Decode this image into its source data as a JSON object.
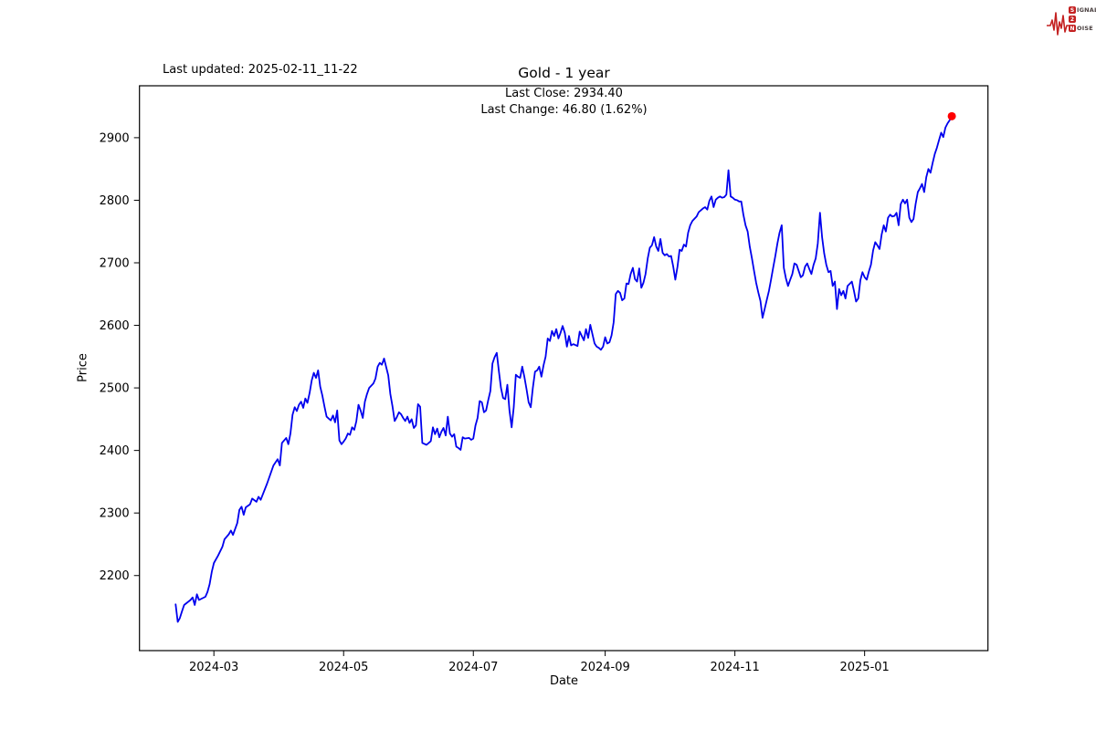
{
  "header": {
    "last_updated": "Last updated: 2025-02-11_11-22",
    "title": "Gold - 1 year",
    "last_close": "Last Close: 2934.40",
    "last_change": "Last Change: 46.80 (1.62%)"
  },
  "logo": {
    "rows": [
      {
        "initial": "S",
        "rest": "IGNAL"
      },
      {
        "initial": "2",
        "rest": ""
      },
      {
        "initial": "N",
        "rest": "OISE"
      }
    ],
    "color": "#c42222"
  },
  "chart_data": {
    "type": "line",
    "title": "Gold - 1 year",
    "xlabel": "Date",
    "ylabel": "Price",
    "line_color": "#0000ee",
    "marker_color": "#ff0000",
    "grid": false,
    "x_axis": {
      "label": "Date",
      "range": [
        "2024-01-26",
        "2025-02-28"
      ],
      "ticks": [
        {
          "label": "2024-03",
          "date": "2024-03-01"
        },
        {
          "label": "2024-05",
          "date": "2024-05-01"
        },
        {
          "label": "2024-07",
          "date": "2024-07-01"
        },
        {
          "label": "2024-09",
          "date": "2024-09-01"
        },
        {
          "label": "2024-11",
          "date": "2024-11-01"
        },
        {
          "label": "2025-01",
          "date": "2025-01-01"
        }
      ]
    },
    "y_axis": {
      "label": "Price",
      "range": [
        2080,
        2983
      ],
      "ticks": [
        2200,
        2300,
        2400,
        2500,
        2600,
        2700,
        2800,
        2900
      ]
    },
    "last_point": {
      "date": "2025-02-11",
      "value": 2934.4
    },
    "points": [
      [
        "2024-02-12",
        2154
      ],
      [
        "2024-02-13",
        2126
      ],
      [
        "2024-02-14",
        2132
      ],
      [
        "2024-02-15",
        2143
      ],
      [
        "2024-02-16",
        2153
      ],
      [
        "2024-02-19",
        2161
      ],
      [
        "2024-02-20",
        2165
      ],
      [
        "2024-02-21",
        2153
      ],
      [
        "2024-02-22",
        2170
      ],
      [
        "2024-02-23",
        2161
      ],
      [
        "2024-02-26",
        2166
      ],
      [
        "2024-02-27",
        2174
      ],
      [
        "2024-02-28",
        2186
      ],
      [
        "2024-02-29",
        2206
      ],
      [
        "2024-03-01",
        2220
      ],
      [
        "2024-03-03",
        2232
      ],
      [
        "2024-03-05",
        2246
      ],
      [
        "2024-03-06",
        2258
      ],
      [
        "2024-03-08",
        2266
      ],
      [
        "2024-03-09",
        2272
      ],
      [
        "2024-03-10",
        2265
      ],
      [
        "2024-03-12",
        2284
      ],
      [
        "2024-03-13",
        2305
      ],
      [
        "2024-03-14",
        2310
      ],
      [
        "2024-03-15",
        2297
      ],
      [
        "2024-03-16",
        2309
      ],
      [
        "2024-03-18",
        2314
      ],
      [
        "2024-03-19",
        2323
      ],
      [
        "2024-03-21",
        2318
      ],
      [
        "2024-03-22",
        2326
      ],
      [
        "2024-03-23",
        2321
      ],
      [
        "2024-03-26",
        2347
      ],
      [
        "2024-03-29",
        2376
      ],
      [
        "2024-03-31",
        2386
      ],
      [
        "2024-04-01",
        2376
      ],
      [
        "2024-04-02",
        2412
      ],
      [
        "2024-04-04",
        2420
      ],
      [
        "2024-04-05",
        2410
      ],
      [
        "2024-04-06",
        2427
      ],
      [
        "2024-04-07",
        2457
      ],
      [
        "2024-04-08",
        2469
      ],
      [
        "2024-04-09",
        2463
      ],
      [
        "2024-04-10",
        2473
      ],
      [
        "2024-04-11",
        2478
      ],
      [
        "2024-04-12",
        2468
      ],
      [
        "2024-04-13",
        2483
      ],
      [
        "2024-04-14",
        2476
      ],
      [
        "2024-04-15",
        2492
      ],
      [
        "2024-04-16",
        2512
      ],
      [
        "2024-04-17",
        2524
      ],
      [
        "2024-04-18",
        2516
      ],
      [
        "2024-04-19",
        2528
      ],
      [
        "2024-04-20",
        2502
      ],
      [
        "2024-04-21",
        2488
      ],
      [
        "2024-04-22",
        2470
      ],
      [
        "2024-04-23",
        2454
      ],
      [
        "2024-04-24",
        2451
      ],
      [
        "2024-04-25",
        2448
      ],
      [
        "2024-04-26",
        2456
      ],
      [
        "2024-04-27",
        2445
      ],
      [
        "2024-04-28",
        2464
      ],
      [
        "2024-04-29",
        2416
      ],
      [
        "2024-04-30",
        2410
      ],
      [
        "2024-05-01",
        2414
      ],
      [
        "2024-05-02",
        2419
      ],
      [
        "2024-05-03",
        2427
      ],
      [
        "2024-05-04",
        2425
      ],
      [
        "2024-05-05",
        2437
      ],
      [
        "2024-05-06",
        2433
      ],
      [
        "2024-05-07",
        2447
      ],
      [
        "2024-05-08",
        2473
      ],
      [
        "2024-05-09",
        2464
      ],
      [
        "2024-05-10",
        2452
      ],
      [
        "2024-05-11",
        2478
      ],
      [
        "2024-05-12",
        2490
      ],
      [
        "2024-05-13",
        2500
      ],
      [
        "2024-05-15",
        2507
      ],
      [
        "2024-05-16",
        2515
      ],
      [
        "2024-05-17",
        2534
      ],
      [
        "2024-05-18",
        2540
      ],
      [
        "2024-05-19",
        2537
      ],
      [
        "2024-05-20",
        2547
      ],
      [
        "2024-05-22",
        2520
      ],
      [
        "2024-05-23",
        2490
      ],
      [
        "2024-05-24",
        2470
      ],
      [
        "2024-05-25",
        2447
      ],
      [
        "2024-05-26",
        2453
      ],
      [
        "2024-05-27",
        2461
      ],
      [
        "2024-05-28",
        2458
      ],
      [
        "2024-05-29",
        2452
      ],
      [
        "2024-05-30",
        2447
      ],
      [
        "2024-05-31",
        2454
      ],
      [
        "2024-06-01",
        2444
      ],
      [
        "2024-06-02",
        2450
      ],
      [
        "2024-06-03",
        2436
      ],
      [
        "2024-06-04",
        2440
      ],
      [
        "2024-06-05",
        2474
      ],
      [
        "2024-06-06",
        2470
      ],
      [
        "2024-06-07",
        2412
      ],
      [
        "2024-06-09",
        2409
      ],
      [
        "2024-06-11",
        2415
      ],
      [
        "2024-06-12",
        2437
      ],
      [
        "2024-06-13",
        2426
      ],
      [
        "2024-06-14",
        2435
      ],
      [
        "2024-06-15",
        2421
      ],
      [
        "2024-06-16",
        2430
      ],
      [
        "2024-06-17",
        2436
      ],
      [
        "2024-06-18",
        2424
      ],
      [
        "2024-06-19",
        2454
      ],
      [
        "2024-06-20",
        2427
      ],
      [
        "2024-06-21",
        2422
      ],
      [
        "2024-06-22",
        2426
      ],
      [
        "2024-06-23",
        2406
      ],
      [
        "2024-06-24",
        2404
      ],
      [
        "2024-06-25",
        2401
      ],
      [
        "2024-06-26",
        2421
      ],
      [
        "2024-06-27",
        2419
      ],
      [
        "2024-06-29",
        2420
      ],
      [
        "2024-06-30",
        2417
      ],
      [
        "2024-07-01",
        2419
      ],
      [
        "2024-07-02",
        2440
      ],
      [
        "2024-07-03",
        2452
      ],
      [
        "2024-07-04",
        2479
      ],
      [
        "2024-07-05",
        2477
      ],
      [
        "2024-07-06",
        2461
      ],
      [
        "2024-07-07",
        2464
      ],
      [
        "2024-07-08",
        2480
      ],
      [
        "2024-07-09",
        2495
      ],
      [
        "2024-07-10",
        2539
      ],
      [
        "2024-07-11",
        2549
      ],
      [
        "2024-07-12",
        2556
      ],
      [
        "2024-07-13",
        2527
      ],
      [
        "2024-07-14",
        2500
      ],
      [
        "2024-07-15",
        2484
      ],
      [
        "2024-07-16",
        2482
      ],
      [
        "2024-07-17",
        2505
      ],
      [
        "2024-07-18",
        2464
      ],
      [
        "2024-07-19",
        2437
      ],
      [
        "2024-07-20",
        2469
      ],
      [
        "2024-07-21",
        2521
      ],
      [
        "2024-07-22",
        2518
      ],
      [
        "2024-07-23",
        2516
      ],
      [
        "2024-07-24",
        2534
      ],
      [
        "2024-07-25",
        2518
      ],
      [
        "2024-07-26",
        2498
      ],
      [
        "2024-07-27",
        2477
      ],
      [
        "2024-07-28",
        2469
      ],
      [
        "2024-07-29",
        2500
      ],
      [
        "2024-07-30",
        2526
      ],
      [
        "2024-07-31",
        2528
      ],
      [
        "2024-08-01",
        2534
      ],
      [
        "2024-08-02",
        2518
      ],
      [
        "2024-08-03",
        2536
      ],
      [
        "2024-08-04",
        2550
      ],
      [
        "2024-08-05",
        2579
      ],
      [
        "2024-08-06",
        2575
      ],
      [
        "2024-08-07",
        2591
      ],
      [
        "2024-08-08",
        2583
      ],
      [
        "2024-08-09",
        2594
      ],
      [
        "2024-08-10",
        2579
      ],
      [
        "2024-08-11",
        2588
      ],
      [
        "2024-08-12",
        2599
      ],
      [
        "2024-08-13",
        2588
      ],
      [
        "2024-08-14",
        2566
      ],
      [
        "2024-08-15",
        2583
      ],
      [
        "2024-08-16",
        2568
      ],
      [
        "2024-08-17",
        2570
      ],
      [
        "2024-08-19",
        2567
      ],
      [
        "2024-08-20",
        2590
      ],
      [
        "2024-08-22",
        2576
      ],
      [
        "2024-08-23",
        2594
      ],
      [
        "2024-08-24",
        2580
      ],
      [
        "2024-08-25",
        2601
      ],
      [
        "2024-08-27",
        2571
      ],
      [
        "2024-08-28",
        2566
      ],
      [
        "2024-08-29",
        2564
      ],
      [
        "2024-08-30",
        2561
      ],
      [
        "2024-08-31",
        2566
      ],
      [
        "2024-09-01",
        2581
      ],
      [
        "2024-09-02",
        2571
      ],
      [
        "2024-09-03",
        2573
      ],
      [
        "2024-09-04",
        2584
      ],
      [
        "2024-09-05",
        2605
      ],
      [
        "2024-09-06",
        2650
      ],
      [
        "2024-09-07",
        2655
      ],
      [
        "2024-09-08",
        2652
      ],
      [
        "2024-09-09",
        2640
      ],
      [
        "2024-09-10",
        2643
      ],
      [
        "2024-09-11",
        2667
      ],
      [
        "2024-09-12",
        2666
      ],
      [
        "2024-09-13",
        2682
      ],
      [
        "2024-09-14",
        2692
      ],
      [
        "2024-09-15",
        2674
      ],
      [
        "2024-09-16",
        2670
      ],
      [
        "2024-09-17",
        2691
      ],
      [
        "2024-09-18",
        2660
      ],
      [
        "2024-09-19",
        2668
      ],
      [
        "2024-09-20",
        2682
      ],
      [
        "2024-09-21",
        2707
      ],
      [
        "2024-09-22",
        2724
      ],
      [
        "2024-09-23",
        2728
      ],
      [
        "2024-09-24",
        2741
      ],
      [
        "2024-09-25",
        2726
      ],
      [
        "2024-09-26",
        2719
      ],
      [
        "2024-09-27",
        2738
      ],
      [
        "2024-09-28",
        2716
      ],
      [
        "2024-09-29",
        2712
      ],
      [
        "2024-09-30",
        2714
      ],
      [
        "2024-10-01",
        2710
      ],
      [
        "2024-10-02",
        2711
      ],
      [
        "2024-10-03",
        2694
      ],
      [
        "2024-10-04",
        2673
      ],
      [
        "2024-10-05",
        2694
      ],
      [
        "2024-10-06",
        2721
      ],
      [
        "2024-10-07",
        2719
      ],
      [
        "2024-10-08",
        2729
      ],
      [
        "2024-10-09",
        2726
      ],
      [
        "2024-10-10",
        2748
      ],
      [
        "2024-10-11",
        2760
      ],
      [
        "2024-10-12",
        2767
      ],
      [
        "2024-10-14",
        2774
      ],
      [
        "2024-10-15",
        2781
      ],
      [
        "2024-10-16",
        2784
      ],
      [
        "2024-10-17",
        2787
      ],
      [
        "2024-10-18",
        2789
      ],
      [
        "2024-10-19",
        2785
      ],
      [
        "2024-10-20",
        2799
      ],
      [
        "2024-10-21",
        2806
      ],
      [
        "2024-10-22",
        2789
      ],
      [
        "2024-10-23",
        2801
      ],
      [
        "2024-10-24",
        2804
      ],
      [
        "2024-10-25",
        2806
      ],
      [
        "2024-10-26",
        2804
      ],
      [
        "2024-10-27",
        2805
      ],
      [
        "2024-10-28",
        2809
      ],
      [
        "2024-10-29",
        2848
      ],
      [
        "2024-10-30",
        2806
      ],
      [
        "2024-10-31",
        2804
      ],
      [
        "2024-11-01",
        2801
      ],
      [
        "2024-11-02",
        2800
      ],
      [
        "2024-11-03",
        2798
      ],
      [
        "2024-11-04",
        2798
      ],
      [
        "2024-11-05",
        2777
      ],
      [
        "2024-11-06",
        2760
      ],
      [
        "2024-11-07",
        2750
      ],
      [
        "2024-11-08",
        2726
      ],
      [
        "2024-11-09",
        2707
      ],
      [
        "2024-11-10",
        2687
      ],
      [
        "2024-11-11",
        2668
      ],
      [
        "2024-11-12",
        2653
      ],
      [
        "2024-11-13",
        2639
      ],
      [
        "2024-11-14",
        2612
      ],
      [
        "2024-11-15",
        2626
      ],
      [
        "2024-11-16",
        2641
      ],
      [
        "2024-11-17",
        2655
      ],
      [
        "2024-11-18",
        2673
      ],
      [
        "2024-11-19",
        2692
      ],
      [
        "2024-11-20",
        2711
      ],
      [
        "2024-11-21",
        2731
      ],
      [
        "2024-11-22",
        2748
      ],
      [
        "2024-11-23",
        2760
      ],
      [
        "2024-11-24",
        2692
      ],
      [
        "2024-11-25",
        2675
      ],
      [
        "2024-11-26",
        2663
      ],
      [
        "2024-11-27",
        2673
      ],
      [
        "2024-11-28",
        2682
      ],
      [
        "2024-11-29",
        2699
      ],
      [
        "2024-11-30",
        2697
      ],
      [
        "2024-12-01",
        2687
      ],
      [
        "2024-12-02",
        2677
      ],
      [
        "2024-12-03",
        2680
      ],
      [
        "2024-12-04",
        2694
      ],
      [
        "2024-12-05",
        2699
      ],
      [
        "2024-12-06",
        2690
      ],
      [
        "2024-12-07",
        2682
      ],
      [
        "2024-12-08",
        2697
      ],
      [
        "2024-12-09",
        2707
      ],
      [
        "2024-12-10",
        2731
      ],
      [
        "2024-12-11",
        2780
      ],
      [
        "2024-12-12",
        2741
      ],
      [
        "2024-12-13",
        2715
      ],
      [
        "2024-12-14",
        2697
      ],
      [
        "2024-12-15",
        2685
      ],
      [
        "2024-12-16",
        2687
      ],
      [
        "2024-12-17",
        2663
      ],
      [
        "2024-12-18",
        2670
      ],
      [
        "2024-12-19",
        2626
      ],
      [
        "2024-12-20",
        2658
      ],
      [
        "2024-12-21",
        2648
      ],
      [
        "2024-12-22",
        2655
      ],
      [
        "2024-12-23",
        2643
      ],
      [
        "2024-12-24",
        2663
      ],
      [
        "2024-12-26",
        2670
      ],
      [
        "2024-12-27",
        2655
      ],
      [
        "2024-12-28",
        2638
      ],
      [
        "2024-12-29",
        2643
      ],
      [
        "2024-12-30",
        2672
      ],
      [
        "2024-12-31",
        2685
      ],
      [
        "2025-01-01",
        2677
      ],
      [
        "2025-01-02",
        2673
      ],
      [
        "2025-01-03",
        2686
      ],
      [
        "2025-01-04",
        2697
      ],
      [
        "2025-01-05",
        2720
      ],
      [
        "2025-01-06",
        2733
      ],
      [
        "2025-01-07",
        2728
      ],
      [
        "2025-01-08",
        2722
      ],
      [
        "2025-01-09",
        2745
      ],
      [
        "2025-01-10",
        2760
      ],
      [
        "2025-01-11",
        2750
      ],
      [
        "2025-01-12",
        2772
      ],
      [
        "2025-01-13",
        2777
      ],
      [
        "2025-01-14",
        2774
      ],
      [
        "2025-01-15",
        2775
      ],
      [
        "2025-01-16",
        2780
      ],
      [
        "2025-01-17",
        2760
      ],
      [
        "2025-01-18",
        2794
      ],
      [
        "2025-01-19",
        2801
      ],
      [
        "2025-01-20",
        2795
      ],
      [
        "2025-01-21",
        2801
      ],
      [
        "2025-01-22",
        2772
      ],
      [
        "2025-01-23",
        2765
      ],
      [
        "2025-01-24",
        2770
      ],
      [
        "2025-01-25",
        2794
      ],
      [
        "2025-01-26",
        2813
      ],
      [
        "2025-01-27",
        2819
      ],
      [
        "2025-01-28",
        2826
      ],
      [
        "2025-01-29",
        2813
      ],
      [
        "2025-01-30",
        2837
      ],
      [
        "2025-01-31",
        2850
      ],
      [
        "2025-02-01",
        2844
      ],
      [
        "2025-02-02",
        2860
      ],
      [
        "2025-02-03",
        2874
      ],
      [
        "2025-02-04",
        2884
      ],
      [
        "2025-02-05",
        2896
      ],
      [
        "2025-02-06",
        2908
      ],
      [
        "2025-02-07",
        2901
      ],
      [
        "2025-02-08",
        2916
      ],
      [
        "2025-02-09",
        2923
      ],
      [
        "2025-02-10",
        2928
      ],
      [
        "2025-02-11",
        2934.4
      ]
    ]
  }
}
